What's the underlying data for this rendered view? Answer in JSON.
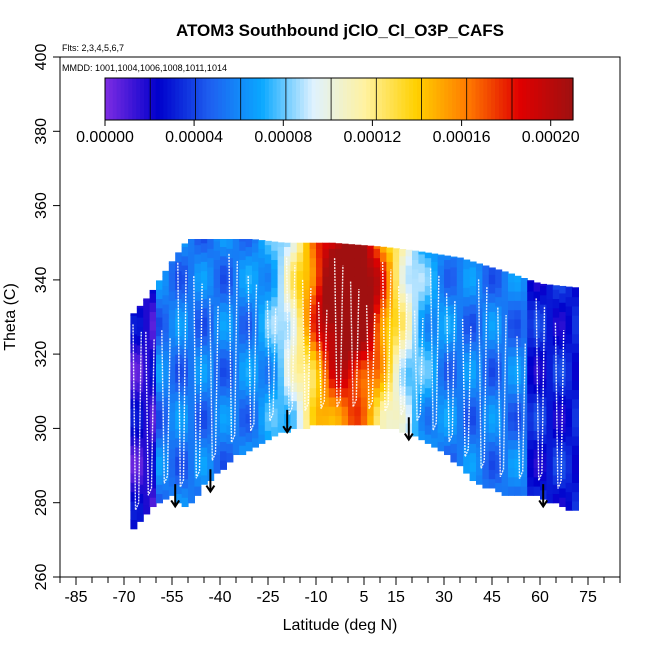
{
  "chart_data": {
    "type": "heatmap",
    "title": "ATOM3 Southbound jClO_Cl_O3P_CAFS",
    "flights_label": "Flts: 2,3,4,5,6,7",
    "dates_label": "MMDD: 1001,1004,1006,1008,1011,1014",
    "xlabel": "Latitude (deg N)",
    "ylabel": "Theta (C)",
    "xlim": [
      -90,
      85
    ],
    "ylim": [
      260,
      400
    ],
    "x_ticks": [
      "-85",
      "-70",
      "-55",
      "-40",
      "-25",
      "-10",
      "5",
      "15",
      "30",
      "45",
      "60",
      "75"
    ],
    "x_tick_values": [
      -85,
      -70,
      -55,
      -40,
      -25,
      -10,
      5,
      15,
      30,
      45,
      60,
      75
    ],
    "y_ticks": [
      "260",
      "280",
      "300",
      "320",
      "340",
      "360",
      "380",
      "400"
    ],
    "y_tick_values": [
      260,
      280,
      300,
      320,
      340,
      360,
      380,
      400
    ],
    "colorbar": {
      "range": [
        0,
        0.00021
      ],
      "tick_labels": [
        "0.00000",
        "0.00004",
        "0.00008",
        "0.00012",
        "0.00016",
        "0.00020"
      ],
      "tick_values": [
        0,
        4e-05,
        8e-05,
        0.00012,
        0.00016,
        0.0002
      ],
      "colors": [
        "#7a2be2",
        "#0000cc",
        "#1e60f0",
        "#0aa8ff",
        "#dff2ff",
        "#fff2a0",
        "#ffd000",
        "#ff7a00",
        "#e00000",
        "#a01010"
      ]
    },
    "field": {
      "lat_range": [
        -68,
        71
      ],
      "bottom_theta": [
        [
          -68,
          272
        ],
        [
          -60,
          280
        ],
        [
          -55,
          282
        ],
        [
          -50,
          279
        ],
        [
          -45,
          285
        ],
        [
          -35,
          293
        ],
        [
          -22,
          299
        ],
        [
          -12,
          301
        ],
        [
          0,
          302
        ],
        [
          10,
          301
        ],
        [
          20,
          299
        ],
        [
          30,
          294
        ],
        [
          40,
          286
        ],
        [
          48,
          283
        ],
        [
          60,
          282
        ],
        [
          71,
          278
        ]
      ],
      "top_theta": [
        [
          -68,
          330
        ],
        [
          -62,
          336
        ],
        [
          -55,
          345
        ],
        [
          -50,
          351
        ],
        [
          -30,
          351
        ],
        [
          -20,
          350
        ],
        [
          -5,
          350
        ],
        [
          10,
          349
        ],
        [
          20,
          348
        ],
        [
          35,
          346
        ],
        [
          50,
          342
        ],
        [
          60,
          339
        ],
        [
          71,
          338
        ]
      ],
      "peak_value_lat": 0,
      "peak_value_theta": 335
    },
    "arrows": [
      {
        "lat": -54,
        "theta": 279
      },
      {
        "lat": -43,
        "theta": 283
      },
      {
        "lat": -19,
        "theta": 299
      },
      {
        "lat": 19,
        "theta": 297
      },
      {
        "lat": 61,
        "theta": 279
      }
    ]
  }
}
